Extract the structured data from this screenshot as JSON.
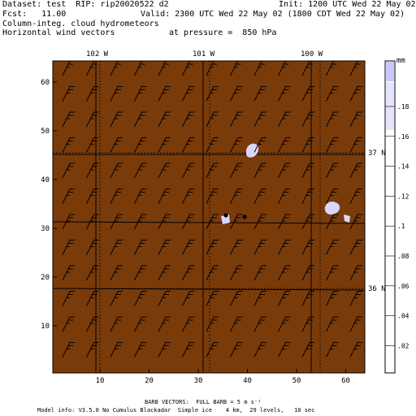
{
  "header": {
    "dataset": "Dataset: test  RIP: rip20020522 d2",
    "init": "Init: 1200 UTC Wed 22 May 02",
    "fcst": "Fcst:   11.00",
    "valid": "Valid: 2300 UTC Wed 22 May 02 (1800 CDT Wed 22 May 02)",
    "field1": "Column-integ. cloud hydrometeors",
    "field2": "Horizontal wind vectors",
    "pressure": "at pressure =  850 hPa"
  },
  "map": {
    "background_color": "#7a3b0a",
    "y_ticks": [
      "60",
      "50",
      "40",
      "30",
      "20",
      "10"
    ],
    "x_ticks": [
      "10",
      "20",
      "30",
      "40",
      "50",
      "60"
    ],
    "lon_labels": [
      "102 W",
      "101 W",
      "100 W"
    ],
    "lat_labels": [
      "37 N",
      "36 N"
    ]
  },
  "colorbar": {
    "unit": "mm",
    "labels": [
      ".18",
      ".16",
      ".14",
      ".12",
      ".1",
      ".08",
      ".06",
      ".04",
      ".02"
    ],
    "colors": [
      "#ffffff",
      "#d8d8ff",
      "#c8c8ff",
      "#b8b8f8",
      "#a8a8f0"
    ]
  },
  "footer": {
    "barb": "BARB VECTORS:  FULL BARB = 5 m s⁻¹",
    "model": "Model info: V3.5.0 No Cumulus Blackadar  Simple ice    4 km,  29 levels,   10 sec"
  }
}
